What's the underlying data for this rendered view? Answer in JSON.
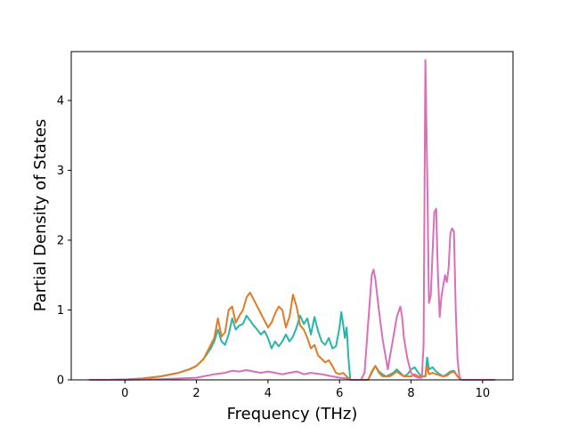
{
  "chart_data": {
    "type": "line",
    "title": "",
    "xlabel": "Frequency (THz)",
    "ylabel": "Partial Density of States",
    "xlim": [
      -1.5,
      10.85
    ],
    "ylim": [
      0,
      4.7
    ],
    "xticks": [
      0,
      2,
      4,
      6,
      8,
      10
    ],
    "yticks": [
      0,
      1,
      2,
      3,
      4
    ],
    "grid": false,
    "legend": "none",
    "series": [
      {
        "color": "#2ab5a9",
        "points": [
          [
            -1.0,
            0
          ],
          [
            -0.5,
            0
          ],
          [
            0,
            0.005
          ],
          [
            0.5,
            0.02
          ],
          [
            1.0,
            0.05
          ],
          [
            1.5,
            0.1
          ],
          [
            1.8,
            0.15
          ],
          [
            2.0,
            0.2
          ],
          [
            2.2,
            0.3
          ],
          [
            2.4,
            0.45
          ],
          [
            2.5,
            0.55
          ],
          [
            2.6,
            0.72
          ],
          [
            2.7,
            0.55
          ],
          [
            2.8,
            0.5
          ],
          [
            2.9,
            0.65
          ],
          [
            3.0,
            0.88
          ],
          [
            3.1,
            0.72
          ],
          [
            3.2,
            0.78
          ],
          [
            3.3,
            0.8
          ],
          [
            3.4,
            0.92
          ],
          [
            3.5,
            0.85
          ],
          [
            3.6,
            0.78
          ],
          [
            3.7,
            0.72
          ],
          [
            3.8,
            0.65
          ],
          [
            3.9,
            0.7
          ],
          [
            4.0,
            0.6
          ],
          [
            4.1,
            0.45
          ],
          [
            4.2,
            0.55
          ],
          [
            4.3,
            0.48
          ],
          [
            4.4,
            0.55
          ],
          [
            4.5,
            0.65
          ],
          [
            4.6,
            0.55
          ],
          [
            4.7,
            0.62
          ],
          [
            4.8,
            0.75
          ],
          [
            4.9,
            0.92
          ],
          [
            5.0,
            0.8
          ],
          [
            5.1,
            0.88
          ],
          [
            5.2,
            0.65
          ],
          [
            5.3,
            0.9
          ],
          [
            5.4,
            0.7
          ],
          [
            5.5,
            0.55
          ],
          [
            5.6,
            0.5
          ],
          [
            5.7,
            0.6
          ],
          [
            5.8,
            0.45
          ],
          [
            5.9,
            0.48
          ],
          [
            6.0,
            0.75
          ],
          [
            6.05,
            0.97
          ],
          [
            6.1,
            0.8
          ],
          [
            6.15,
            0.6
          ],
          [
            6.2,
            0.75
          ],
          [
            6.25,
            0.3
          ],
          [
            6.3,
            0.0
          ],
          [
            6.8,
            0
          ],
          [
            6.9,
            0.1
          ],
          [
            7.0,
            0.2
          ],
          [
            7.1,
            0.12
          ],
          [
            7.2,
            0.08
          ],
          [
            7.3,
            0.05
          ],
          [
            7.5,
            0.1
          ],
          [
            7.6,
            0.15
          ],
          [
            7.7,
            0.1
          ],
          [
            7.8,
            0.05
          ],
          [
            7.9,
            0.08
          ],
          [
            8.0,
            0.15
          ],
          [
            8.1,
            0.18
          ],
          [
            8.2,
            0.1
          ],
          [
            8.3,
            0.05
          ],
          [
            8.4,
            0.05
          ],
          [
            8.45,
            0.32
          ],
          [
            8.5,
            0.15
          ],
          [
            8.6,
            0.18
          ],
          [
            8.7,
            0.12
          ],
          [
            8.8,
            0.08
          ],
          [
            8.9,
            0.05
          ],
          [
            9.0,
            0.08
          ],
          [
            9.1,
            0.12
          ],
          [
            9.2,
            0.13
          ],
          [
            9.3,
            0.05
          ],
          [
            9.4,
            0
          ],
          [
            10.0,
            0
          ],
          [
            10.35,
            0
          ]
        ]
      },
      {
        "color": "#e07b28",
        "points": [
          [
            -1.0,
            0
          ],
          [
            -0.5,
            0
          ],
          [
            0,
            0.005
          ],
          [
            0.5,
            0.02
          ],
          [
            1.0,
            0.05
          ],
          [
            1.5,
            0.1
          ],
          [
            1.8,
            0.15
          ],
          [
            2.0,
            0.2
          ],
          [
            2.2,
            0.3
          ],
          [
            2.4,
            0.5
          ],
          [
            2.5,
            0.6
          ],
          [
            2.6,
            0.88
          ],
          [
            2.7,
            0.62
          ],
          [
            2.8,
            0.68
          ],
          [
            2.9,
            1.0
          ],
          [
            3.0,
            1.05
          ],
          [
            3.1,
            0.82
          ],
          [
            3.2,
            0.92
          ],
          [
            3.3,
            1.0
          ],
          [
            3.4,
            1.18
          ],
          [
            3.5,
            1.25
          ],
          [
            3.6,
            1.15
          ],
          [
            3.7,
            1.05
          ],
          [
            3.8,
            0.95
          ],
          [
            3.9,
            0.85
          ],
          [
            4.0,
            0.75
          ],
          [
            4.1,
            0.82
          ],
          [
            4.2,
            0.95
          ],
          [
            4.3,
            1.05
          ],
          [
            4.4,
            1.0
          ],
          [
            4.5,
            0.75
          ],
          [
            4.6,
            0.9
          ],
          [
            4.7,
            1.22
          ],
          [
            4.8,
            1.05
          ],
          [
            4.9,
            0.78
          ],
          [
            5.0,
            0.72
          ],
          [
            5.1,
            0.6
          ],
          [
            5.2,
            0.45
          ],
          [
            5.3,
            0.5
          ],
          [
            5.4,
            0.35
          ],
          [
            5.5,
            0.3
          ],
          [
            5.6,
            0.25
          ],
          [
            5.7,
            0.28
          ],
          [
            5.8,
            0.2
          ],
          [
            5.9,
            0.1
          ],
          [
            6.0,
            0.08
          ],
          [
            6.1,
            0.1
          ],
          [
            6.2,
            0.05
          ],
          [
            6.3,
            0
          ],
          [
            6.8,
            0
          ],
          [
            6.9,
            0.12
          ],
          [
            7.0,
            0.2
          ],
          [
            7.1,
            0.1
          ],
          [
            7.2,
            0.05
          ],
          [
            7.4,
            0.05
          ],
          [
            7.5,
            0.08
          ],
          [
            7.6,
            0.12
          ],
          [
            7.7,
            0.08
          ],
          [
            7.8,
            0.05
          ],
          [
            8.0,
            0.05
          ],
          [
            8.1,
            0.08
          ],
          [
            8.2,
            0.05
          ],
          [
            8.4,
            0.05
          ],
          [
            8.45,
            0.2
          ],
          [
            8.5,
            0.08
          ],
          [
            8.6,
            0.1
          ],
          [
            8.7,
            0.08
          ],
          [
            8.9,
            0.05
          ],
          [
            9.0,
            0.06
          ],
          [
            9.1,
            0.1
          ],
          [
            9.2,
            0.12
          ],
          [
            9.3,
            0.05
          ],
          [
            9.4,
            0
          ],
          [
            10.0,
            0
          ],
          [
            10.35,
            0
          ]
        ]
      },
      {
        "color": "#d770b8",
        "points": [
          [
            -1.0,
            0
          ],
          [
            0,
            0
          ],
          [
            1.0,
            0.01
          ],
          [
            2.0,
            0.03
          ],
          [
            2.5,
            0.08
          ],
          [
            2.8,
            0.1
          ],
          [
            3.0,
            0.13
          ],
          [
            3.2,
            0.12
          ],
          [
            3.4,
            0.14
          ],
          [
            3.6,
            0.12
          ],
          [
            3.8,
            0.1
          ],
          [
            4.0,
            0.12
          ],
          [
            4.2,
            0.1
          ],
          [
            4.4,
            0.08
          ],
          [
            4.6,
            0.1
          ],
          [
            4.8,
            0.12
          ],
          [
            5.0,
            0.08
          ],
          [
            5.2,
            0.1
          ],
          [
            5.5,
            0.08
          ],
          [
            5.8,
            0.05
          ],
          [
            6.0,
            0.03
          ],
          [
            6.2,
            0.02
          ],
          [
            6.3,
            0
          ],
          [
            6.6,
            0
          ],
          [
            6.7,
            0.1
          ],
          [
            6.8,
            0.8
          ],
          [
            6.9,
            1.5
          ],
          [
            6.95,
            1.58
          ],
          [
            7.0,
            1.45
          ],
          [
            7.1,
            1.0
          ],
          [
            7.2,
            0.6
          ],
          [
            7.3,
            0.3
          ],
          [
            7.35,
            0.15
          ],
          [
            7.4,
            0.3
          ],
          [
            7.5,
            0.6
          ],
          [
            7.6,
            0.9
          ],
          [
            7.7,
            1.05
          ],
          [
            7.75,
            0.9
          ],
          [
            7.8,
            0.6
          ],
          [
            7.9,
            0.3
          ],
          [
            8.0,
            0.1
          ],
          [
            8.1,
            0.05
          ],
          [
            8.2,
            0.03
          ],
          [
            8.3,
            0.03
          ],
          [
            8.35,
            0.5
          ],
          [
            8.4,
            4.58
          ],
          [
            8.45,
            3.0
          ],
          [
            8.5,
            1.1
          ],
          [
            8.55,
            1.2
          ],
          [
            8.6,
            1.8
          ],
          [
            8.65,
            2.4
          ],
          [
            8.7,
            2.45
          ],
          [
            8.75,
            1.5
          ],
          [
            8.8,
            0.9
          ],
          [
            8.85,
            1.2
          ],
          [
            8.9,
            1.35
          ],
          [
            8.95,
            1.5
          ],
          [
            9.0,
            1.4
          ],
          [
            9.05,
            1.6
          ],
          [
            9.1,
            2.1
          ],
          [
            9.15,
            2.17
          ],
          [
            9.2,
            2.12
          ],
          [
            9.25,
            1.0
          ],
          [
            9.3,
            0.3
          ],
          [
            9.35,
            0.05
          ],
          [
            9.4,
            0
          ],
          [
            10.0,
            0
          ],
          [
            10.35,
            0
          ]
        ]
      }
    ]
  }
}
